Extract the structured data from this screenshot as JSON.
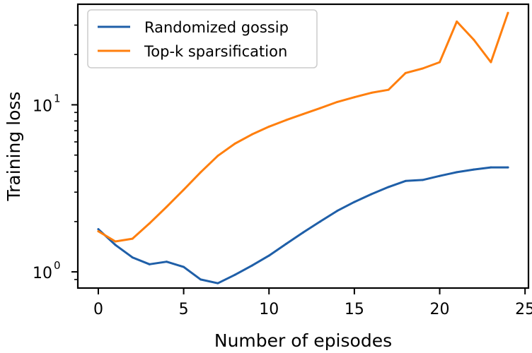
{
  "chart_data": {
    "type": "line",
    "title": "",
    "xlabel": "Number of episodes",
    "ylabel": "Training loss",
    "yscale": "log",
    "xlim": [
      -1.2,
      25.2
    ],
    "ylim": [
      0.8,
      40
    ],
    "x_ticks": [
      0,
      5,
      10,
      15,
      20,
      25
    ],
    "x_tick_labels": [
      "0",
      "5",
      "10",
      "15",
      "20",
      "25"
    ],
    "y_major_ticks": [
      1,
      10
    ],
    "y_tick_labels": [
      {
        "base": "10",
        "exp": "0"
      },
      {
        "base": "10",
        "exp": "1"
      }
    ],
    "y_minor_ticks": [
      0.9,
      2,
      3,
      4,
      5,
      6,
      7,
      8,
      9,
      20,
      30
    ],
    "grid": false,
    "legend_position": "top-left",
    "x": [
      0,
      1,
      2,
      3,
      4,
      5,
      6,
      7,
      8,
      9,
      10,
      11,
      12,
      13,
      14,
      15,
      16,
      17,
      18,
      19,
      20,
      21,
      22,
      23,
      24
    ],
    "series": [
      {
        "name": "Randomized gossip",
        "color": "#1f5fa8",
        "values": [
          1.8,
          1.45,
          1.22,
          1.11,
          1.15,
          1.07,
          0.9,
          0.855,
          0.96,
          1.09,
          1.25,
          1.47,
          1.72,
          2.0,
          2.32,
          2.62,
          2.92,
          3.22,
          3.5,
          3.55,
          3.75,
          3.95,
          4.1,
          4.22,
          4.22
        ]
      },
      {
        "name": "Top-k sparsification",
        "color": "#ff7f0e",
        "values": [
          1.75,
          1.52,
          1.58,
          1.95,
          2.45,
          3.1,
          3.95,
          4.95,
          5.85,
          6.65,
          7.4,
          8.1,
          8.8,
          9.55,
          10.4,
          11.1,
          11.8,
          12.3,
          15.5,
          16.5,
          18.0,
          31.5,
          24.5,
          18.0,
          35.5
        ]
      }
    ]
  }
}
